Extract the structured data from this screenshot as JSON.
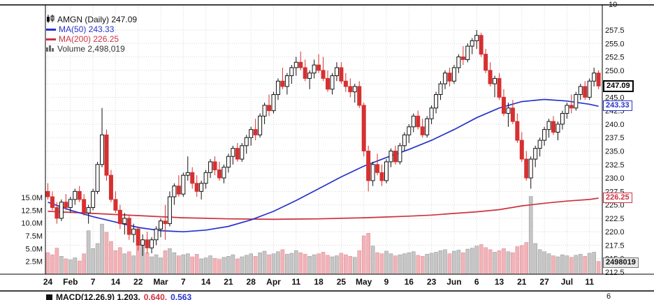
{
  "legend": {
    "symbol": "AMGN (Daily) 247.09",
    "ma50": "MA(50) 243.33",
    "ma200": "MA(200) 226.25",
    "volume": "Volume 2,498,019"
  },
  "axis_boxes": {
    "last_price": "247.09",
    "ma50": "243.33",
    "ma200": "226.25",
    "volume": "2498019",
    "upper_scale": "10",
    "lower_scale": "6"
  },
  "macd": {
    "seg1": "MACD(12,26,9) 1.203,",
    "seg2": "0.640,",
    "seg3": "0.563"
  },
  "colors": {
    "up_border": "#111111",
    "down": "#d63031",
    "ma50": "#2733cc",
    "ma200": "#cc3340",
    "vol_up_fill": "#c6c6c6",
    "vol_up_stroke": "#9b9b9b",
    "vol_down_fill": "#f2b3b8",
    "vol_down_stroke": "#dd8f96",
    "grid": "#d8d8d8"
  },
  "chart_data": {
    "type": "candlestick",
    "title": "AMGN (Daily)",
    "last_price": 247.09,
    "indicators": [
      {
        "name": "MA(50)",
        "value": 243.33
      },
      {
        "name": "MA(200)",
        "value": 226.25
      }
    ],
    "volume_last": 2498019,
    "macd": {
      "params": "12,26,9",
      "values": [
        1.203,
        0.64,
        0.563
      ]
    },
    "price_axis": {
      "min": 212.5,
      "max": 257.5,
      "step": 2.5
    },
    "volume_axis_ticks_m": [
      2.5,
      5.0,
      7.5,
      10.0,
      12.5,
      15.0
    ],
    "x_ticks": [
      "24",
      "Feb",
      "7",
      "14",
      "22",
      "Mar",
      "7",
      "14",
      "21",
      "28",
      "Apr",
      "11",
      "18",
      "25",
      "May",
      "9",
      "16",
      "23",
      "Jun",
      "6",
      "13",
      "21",
      "27",
      "Jul",
      "11"
    ],
    "candles": [
      [
        227.5,
        229.0,
        226.0,
        226.5
      ],
      [
        226.5,
        227.5,
        224.0,
        224.5
      ],
      [
        224.5,
        225.5,
        221.5,
        222.5
      ],
      [
        222.5,
        226.0,
        222.0,
        225.5
      ],
      [
        225.5,
        227.0,
        224.0,
        224.5
      ],
      [
        224.5,
        226.5,
        223.5,
        226.0
      ],
      [
        226.0,
        228.0,
        225.0,
        227.5
      ],
      [
        227.5,
        228.5,
        225.5,
        226.0
      ],
      [
        226.0,
        227.0,
        223.0,
        223.5
      ],
      [
        223.5,
        225.0,
        221.5,
        224.5
      ],
      [
        224.5,
        228.0,
        224.0,
        227.5
      ],
      [
        227.5,
        233.0,
        227.0,
        232.5
      ],
      [
        232.5,
        243.0,
        232.0,
        238.0
      ],
      [
        238.0,
        239.0,
        229.5,
        230.5
      ],
      [
        230.5,
        231.5,
        225.5,
        226.0
      ],
      [
        226.0,
        227.5,
        223.5,
        224.0
      ],
      [
        224.0,
        225.0,
        220.5,
        221.5
      ],
      [
        221.5,
        223.5,
        219.5,
        222.5
      ],
      [
        222.5,
        223.0,
        218.5,
        219.5
      ],
      [
        219.5,
        221.5,
        218.0,
        220.5
      ],
      [
        220.5,
        221.0,
        216.5,
        217.5
      ],
      [
        217.5,
        219.5,
        215.5,
        218.5
      ],
      [
        218.5,
        220.0,
        216.0,
        217.0
      ],
      [
        217.0,
        219.0,
        216.0,
        218.5
      ],
      [
        218.5,
        221.0,
        217.5,
        220.5
      ],
      [
        220.5,
        222.5,
        219.0,
        222.0
      ],
      [
        222.0,
        225.0,
        218.5,
        221.5
      ],
      [
        221.5,
        227.5,
        221.0,
        226.5
      ],
      [
        226.5,
        229.0,
        225.0,
        228.5
      ],
      [
        228.5,
        230.5,
        226.5,
        227.0
      ],
      [
        227.0,
        231.0,
        226.5,
        230.5
      ],
      [
        230.5,
        234.0,
        229.5,
        231.0
      ],
      [
        231.0,
        232.0,
        228.0,
        229.0
      ],
      [
        229.0,
        230.5,
        226.5,
        227.5
      ],
      [
        227.5,
        229.5,
        226.0,
        229.0
      ],
      [
        229.0,
        231.5,
        228.0,
        231.0
      ],
      [
        231.0,
        233.5,
        230.0,
        233.0
      ],
      [
        233.0,
        234.0,
        230.5,
        231.5
      ],
      [
        231.5,
        233.0,
        229.5,
        230.0
      ],
      [
        230.0,
        232.5,
        229.0,
        232.0
      ],
      [
        232.0,
        234.5,
        231.0,
        234.0
      ],
      [
        234.0,
        236.0,
        232.5,
        235.5
      ],
      [
        235.5,
        236.5,
        233.0,
        233.5
      ],
      [
        233.5,
        236.5,
        233.0,
        236.0
      ],
      [
        236.0,
        238.0,
        234.5,
        237.5
      ],
      [
        237.5,
        239.5,
        236.0,
        239.0
      ],
      [
        239.0,
        241.0,
        237.0,
        238.0
      ],
      [
        238.0,
        242.0,
        237.5,
        241.5
      ],
      [
        241.5,
        244.0,
        240.0,
        243.5
      ],
      [
        243.5,
        245.5,
        241.5,
        242.5
      ],
      [
        242.5,
        246.0,
        242.0,
        245.5
      ],
      [
        245.5,
        248.5,
        244.5,
        248.0
      ],
      [
        248.0,
        250.5,
        246.5,
        247.0
      ],
      [
        247.0,
        249.5,
        245.5,
        249.0
      ],
      [
        249.0,
        251.0,
        247.5,
        250.5
      ],
      [
        250.5,
        252.5,
        249.0,
        251.5
      ],
      [
        251.5,
        253.5,
        250.0,
        250.5
      ],
      [
        250.5,
        252.0,
        248.0,
        248.5
      ],
      [
        248.5,
        250.0,
        246.5,
        249.5
      ],
      [
        249.5,
        252.0,
        248.5,
        251.0
      ],
      [
        251.0,
        253.0,
        249.5,
        250.0
      ],
      [
        250.0,
        252.5,
        248.0,
        248.5
      ],
      [
        248.5,
        250.0,
        246.0,
        246.5
      ],
      [
        246.5,
        249.5,
        245.5,
        249.0
      ],
      [
        249.0,
        251.5,
        248.0,
        250.5
      ],
      [
        250.5,
        251.5,
        247.5,
        248.0
      ],
      [
        248.0,
        249.5,
        246.0,
        247.0
      ],
      [
        247.0,
        248.5,
        245.0,
        246.0
      ],
      [
        246.0,
        247.5,
        244.0,
        247.0
      ],
      [
        247.0,
        248.0,
        243.0,
        243.5
      ],
      [
        243.5,
        244.0,
        234.0,
        235.0
      ],
      [
        235.0,
        236.0,
        227.5,
        229.5
      ],
      [
        229.5,
        233.0,
        228.5,
        232.5
      ],
      [
        232.5,
        234.5,
        230.5,
        231.0
      ],
      [
        231.0,
        232.5,
        228.5,
        229.5
      ],
      [
        229.5,
        233.5,
        229.0,
        233.0
      ],
      [
        233.0,
        235.5,
        232.0,
        235.0
      ],
      [
        235.0,
        236.0,
        232.5,
        233.0
      ],
      [
        233.0,
        236.5,
        232.5,
        236.0
      ],
      [
        236.0,
        238.5,
        235.0,
        238.0
      ],
      [
        238.0,
        240.0,
        236.5,
        239.5
      ],
      [
        239.5,
        242.0,
        238.5,
        241.5
      ],
      [
        241.5,
        242.5,
        239.0,
        239.5
      ],
      [
        239.5,
        241.0,
        237.5,
        238.0
      ],
      [
        238.0,
        241.5,
        237.5,
        241.0
      ],
      [
        241.0,
        243.5,
        240.0,
        243.0
      ],
      [
        243.0,
        246.0,
        242.0,
        245.5
      ],
      [
        245.5,
        248.0,
        244.5,
        247.5
      ],
      [
        247.5,
        250.0,
        246.5,
        249.5
      ],
      [
        249.5,
        250.5,
        247.0,
        248.0
      ],
      [
        248.0,
        251.0,
        247.5,
        250.5
      ],
      [
        250.5,
        253.0,
        249.5,
        252.5
      ],
      [
        252.5,
        254.5,
        251.0,
        252.0
      ],
      [
        252.0,
        255.0,
        251.5,
        254.5
      ],
      [
        254.5,
        256.0,
        253.0,
        255.5
      ],
      [
        255.5,
        257.5,
        254.0,
        256.5
      ],
      [
        256.5,
        257.0,
        252.5,
        253.0
      ],
      [
        253.0,
        254.0,
        249.5,
        250.0
      ],
      [
        250.0,
        251.5,
        247.0,
        247.5
      ],
      [
        247.5,
        249.0,
        245.0,
        248.5
      ],
      [
        248.5,
        249.5,
        244.5,
        245.0
      ],
      [
        245.0,
        246.5,
        241.5,
        242.0
      ],
      [
        242.0,
        244.0,
        239.5,
        243.0
      ],
      [
        243.0,
        244.5,
        240.0,
        240.5
      ],
      [
        240.5,
        242.0,
        236.5,
        237.0
      ],
      [
        237.0,
        238.5,
        233.0,
        233.5
      ],
      [
        233.5,
        235.0,
        229.5,
        230.0
      ],
      [
        230.0,
        234.0,
        228.0,
        233.5
      ],
      [
        233.5,
        236.0,
        232.0,
        235.5
      ],
      [
        235.5,
        237.5,
        234.0,
        237.0
      ],
      [
        237.0,
        239.5,
        236.0,
        239.0
      ],
      [
        239.0,
        241.0,
        237.5,
        240.5
      ],
      [
        240.5,
        241.5,
        238.0,
        238.5
      ],
      [
        238.5,
        240.5,
        237.0,
        240.0
      ],
      [
        240.0,
        242.5,
        239.0,
        242.0
      ],
      [
        242.0,
        244.0,
        241.0,
        243.5
      ],
      [
        243.5,
        245.5,
        242.0,
        243.0
      ],
      [
        243.0,
        246.0,
        242.5,
        245.5
      ],
      [
        245.5,
        247.5,
        244.5,
        247.0
      ],
      [
        247.0,
        248.0,
        244.5,
        245.0
      ],
      [
        245.0,
        248.5,
        244.5,
        248.0
      ],
      [
        248.0,
        250.5,
        247.0,
        249.5
      ],
      [
        249.5,
        250.0,
        246.5,
        247.09
      ]
    ],
    "volumes_m": [
      4.2,
      3.8,
      5.1,
      3.5,
      3.0,
      2.8,
      3.2,
      2.6,
      4.0,
      8.5,
      5.0,
      6.0,
      9.8,
      8.2,
      6.4,
      4.6,
      5.2,
      4.0,
      4.4,
      3.6,
      6.0,
      5.5,
      4.2,
      3.4,
      3.8,
      3.2,
      4.6,
      5.0,
      4.2,
      3.6,
      3.8,
      4.0,
      3.4,
      3.9,
      3.0,
      3.2,
      3.6,
      3.1,
      2.9,
      3.3,
      3.5,
      3.8,
      3.0,
      3.4,
      3.7,
      4.0,
      3.5,
      4.2,
      4.5,
      3.8,
      4.0,
      4.4,
      4.8,
      3.9,
      4.1,
      4.6,
      4.2,
      3.9,
      3.5,
      3.8,
      4.0,
      4.3,
      3.7,
      3.4,
      3.6,
      4.1,
      3.8,
      3.5,
      3.3,
      4.6,
      7.5,
      8.0,
      5.5,
      4.2,
      4.0,
      4.5,
      4.0,
      3.6,
      3.8,
      4.0,
      4.2,
      4.4,
      3.7,
      3.5,
      3.9,
      4.1,
      4.3,
      4.6,
      4.8,
      4.0,
      4.5,
      4.7,
      4.2,
      4.9,
      5.1,
      5.5,
      5.8,
      5.2,
      4.8,
      4.3,
      4.6,
      5.0,
      4.4,
      4.2,
      5.4,
      5.6,
      6.2,
      15.2,
      6.0,
      4.8,
      4.4,
      4.0,
      3.6,
      3.4,
      3.8,
      3.6,
      3.3,
      3.7,
      3.9,
      3.5,
      4.1,
      4.3,
      2.5
    ],
    "ma50_at_ticks": [
      225.5,
      224.0,
      222.8,
      221.8,
      220.8,
      220.2,
      220.0,
      220.3,
      221.0,
      222.2,
      223.8,
      225.8,
      228.0,
      230.2,
      232.2,
      233.8,
      235.3,
      237.0,
      239.0,
      241.2,
      243.0,
      244.2,
      244.6,
      244.3,
      243.7,
      243.33
    ],
    "ma200_at_ticks": [
      223.8,
      223.6,
      223.4,
      223.2,
      223.0,
      222.8,
      222.6,
      222.5,
      222.4,
      222.35,
      222.3,
      222.35,
      222.4,
      222.5,
      222.6,
      222.75,
      222.9,
      223.1,
      223.4,
      223.7,
      224.1,
      224.8,
      225.3,
      225.7,
      226.0,
      226.25
    ]
  }
}
